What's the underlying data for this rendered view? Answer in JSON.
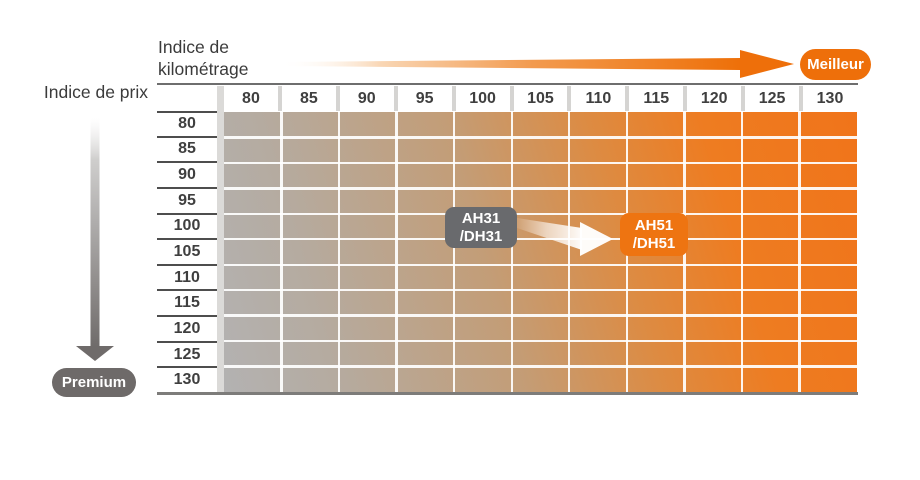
{
  "labels": {
    "y_axis_title": "Indice de prix",
    "x_axis_title": "Indice de kilométrage"
  },
  "badges": {
    "better": "Meilleur",
    "premium": "Premium"
  },
  "colors": {
    "accent_orange": "#ee7010",
    "dark_gray": "#6e6a69",
    "annotation_gray": "#696a6d",
    "grid_low": "#b3b2b2",
    "grid_mid": "#c49e74",
    "grid_high": "#f0741a",
    "text": "#3b3b3b"
  },
  "chart_data": {
    "type": "heatmap",
    "x_axis": {
      "label": "Indice de kilométrage",
      "ticks": [
        "80",
        "85",
        "90",
        "95",
        "100",
        "105",
        "110",
        "115",
        "120",
        "125",
        "130"
      ],
      "better_direction": "right",
      "better_label": "Meilleur"
    },
    "y_axis": {
      "label": "Indice de prix",
      "ticks": [
        "80",
        "85",
        "90",
        "95",
        "100",
        "105",
        "110",
        "115",
        "120",
        "125",
        "130"
      ],
      "better_direction": "down",
      "better_label": "Premium"
    },
    "gradient": {
      "low": "#b3b2b2",
      "mid": "#c49e74",
      "high": "#f0741a",
      "direction": "gray bottom-left to orange top-right"
    },
    "annotations": [
      {
        "id": "ah31-dh31",
        "line1": "AH31",
        "line2": "/DH31",
        "col": "100",
        "row": "100",
        "color": "#696a6d"
      },
      {
        "id": "ah51-dh51",
        "line1": "AH51",
        "line2": "/DH51",
        "col": "115",
        "row": "105",
        "color": "#ee7411"
      }
    ],
    "movement_arrow": {
      "from": "AH31/DH31",
      "to": "AH51/DH51"
    }
  }
}
